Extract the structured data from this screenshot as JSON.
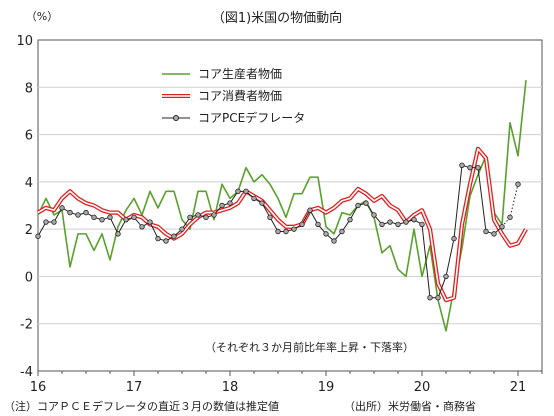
{
  "chart_data": {
    "type": "line",
    "title": "（図1)米国の物価動向",
    "ylabel": "（%）",
    "ylim": [
      -4,
      10
    ],
    "yticks": [
      "-4",
      "-2",
      "0",
      "2",
      "4",
      "6",
      "8",
      "10"
    ],
    "xlim": [
      0,
      63
    ],
    "x_labels": [
      {
        "x": 0,
        "label": "16"
      },
      {
        "x": 12,
        "label": "17"
      },
      {
        "x": 24,
        "label": "18"
      },
      {
        "x": 36,
        "label": "19"
      },
      {
        "x": 48,
        "label": "20"
      },
      {
        "x": 60,
        "label": "21"
      }
    ],
    "annotation": "（それぞれ３か月前比年率上昇・下落率）",
    "footnote": "（注）コアＰＣＥデフレータの直近３月の数値は推定値",
    "source": "（出所）米労働省・商務省",
    "legend_position": "top-center",
    "series": [
      {
        "name": "コア生産者物価",
        "color": "#5aa02c",
        "style": "green",
        "values": [
          2.6,
          3.3,
          2.6,
          2.8,
          0.4,
          1.8,
          1.8,
          1.1,
          1.8,
          0.7,
          2.1,
          2.8,
          3.3,
          2.6,
          3.6,
          2.9,
          3.6,
          3.6,
          2.4,
          2.0,
          3.6,
          3.6,
          2.4,
          3.9,
          3.3,
          3.6,
          4.6,
          4.0,
          4.3,
          3.9,
          3.3,
          2.5,
          3.5,
          3.5,
          4.2,
          4.2,
          2.1,
          1.8,
          2.7,
          2.6,
          3.0,
          3.2,
          2.5,
          1.0,
          1.3,
          0.3,
          0.0,
          2.0,
          0.0,
          1.3,
          -1.0,
          -2.3,
          -0.5,
          1.2,
          3.4,
          4.3,
          5.1,
          2.7,
          2.2,
          6.5,
          5.1,
          8.3
        ]
      },
      {
        "name": "コア消費者物価",
        "color": "#e02020",
        "style": "red-outline",
        "values": [
          2.7,
          2.9,
          2.8,
          3.3,
          3.6,
          3.3,
          3.1,
          3.0,
          2.8,
          2.7,
          2.7,
          2.4,
          2.6,
          2.5,
          2.2,
          2.1,
          1.8,
          1.6,
          1.8,
          2.2,
          2.5,
          2.7,
          2.7,
          2.8,
          2.9,
          3.1,
          3.6,
          3.4,
          3.2,
          2.8,
          2.4,
          2.1,
          2.1,
          2.2,
          2.8,
          2.9,
          2.7,
          2.9,
          3.2,
          3.3,
          3.7,
          3.5,
          3.2,
          3.4,
          3.0,
          2.8,
          2.3,
          2.6,
          2.8,
          2.0,
          -0.3,
          -1.0,
          -0.9,
          2.2,
          3.9,
          5.4,
          5.0,
          2.4,
          1.8,
          1.3,
          1.4,
          2.0
        ]
      },
      {
        "name": "コアPCEデフレータ",
        "color": "#222222",
        "style": "black-marker",
        "values": [
          1.7,
          2.3,
          2.3,
          2.9,
          2.7,
          2.6,
          2.7,
          2.5,
          2.4,
          2.5,
          1.8,
          2.4,
          2.5,
          2.1,
          2.3,
          1.6,
          1.5,
          1.7,
          2.0,
          2.5,
          2.6,
          2.5,
          2.6,
          3.0,
          3.1,
          3.6,
          3.6,
          3.3,
          3.1,
          2.5,
          1.9,
          1.9,
          2.0,
          2.2,
          2.8,
          2.2,
          1.8,
          1.5,
          1.9,
          2.4,
          3.0,
          3.1,
          2.6,
          2.2,
          2.3,
          2.2,
          2.3,
          2.4,
          2.2,
          -0.9,
          -0.9,
          0.0,
          1.6,
          4.7,
          4.6,
          4.6,
          1.9,
          1.8,
          2.1,
          2.5,
          3.9
        ],
        "estimated_from_index": 58
      }
    ]
  }
}
